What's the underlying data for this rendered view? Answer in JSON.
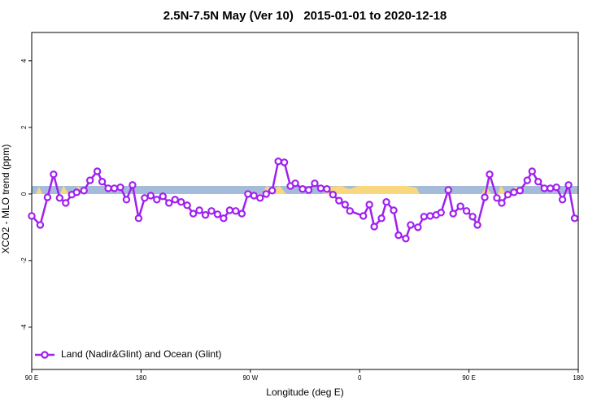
{
  "chart_data": {
    "type": "line",
    "title": "2.5N-7.5N May (Ver 10)   2015-01-01 to 2020-12-18",
    "xlabel": "Longitude (deg E)",
    "ylabel": "XCO2 - MLO trend (ppm)",
    "xlim": [
      90,
      540
    ],
    "ylim": [
      -5.27,
      4.85
    ],
    "xticks": [
      {
        "value": 90,
        "label": "90 E"
      },
      180,
      {
        "value": 270,
        "label": "90 W"
      },
      {
        "value": 360,
        "label": "0"
      },
      {
        "value": 450,
        "label": "90 E"
      },
      {
        "value": 540,
        "label": "180"
      }
    ],
    "yticks": [
      -4,
      -2,
      0,
      2,
      4
    ],
    "legend": "bottom-left",
    "series": [
      {
        "name": "Land (Nadir&Glint) and Ocean (Glint)",
        "color": "#a020f0",
        "x": [
          90,
          97,
          103,
          108,
          113,
          118,
          123,
          127,
          133,
          138,
          144,
          148,
          153,
          158,
          163,
          168,
          173,
          178,
          183,
          188,
          193,
          198,
          203,
          208,
          213,
          218,
          223,
          228,
          233,
          238,
          243,
          248,
          253,
          258,
          263,
          268,
          273,
          278,
          283,
          288,
          293,
          298,
          303,
          307,
          313,
          318,
          323,
          328,
          333,
          338,
          343,
          348,
          352,
          363,
          368,
          372,
          378,
          382,
          388,
          392,
          398,
          402,
          408,
          413,
          418,
          423,
          427,
          433,
          437,
          443,
          448,
          453,
          457,
          463,
          467,
          473,
          477,
          482,
          487,
          492,
          498,
          502,
          507,
          512,
          517,
          522,
          527,
          532,
          537
        ],
        "values": [
          -0.66,
          -0.93,
          -0.1,
          0.59,
          -0.12,
          -0.27,
          -0.02,
          0.05,
          0.1,
          0.41,
          0.68,
          0.37,
          0.17,
          0.17,
          0.2,
          -0.17,
          0.27,
          -0.73,
          -0.12,
          -0.05,
          -0.17,
          -0.07,
          -0.27,
          -0.17,
          -0.24,
          -0.34,
          -0.59,
          -0.49,
          -0.63,
          -0.51,
          -0.61,
          -0.73,
          -0.49,
          -0.51,
          -0.59,
          0,
          -0.05,
          -0.12,
          0,
          0.1,
          0.98,
          0.95,
          0.24,
          0.32,
          0.15,
          0.12,
          0.32,
          0.17,
          0.15,
          -0.02,
          -0.2,
          -0.32,
          -0.51,
          -0.66,
          -0.32,
          -0.98,
          -0.73,
          -0.24,
          -0.49,
          -1.24,
          -1.34,
          -0.93,
          -1.0,
          -0.68,
          -0.66,
          -0.63,
          -0.56,
          0.12,
          -0.59,
          -0.37,
          -0.51,
          -0.68,
          -0.93,
          -0.1,
          0.59,
          -0.12,
          -0.27,
          -0.02,
          0.05,
          0.1,
          0.41,
          0.68,
          0.37,
          0.17,
          0.17,
          0.2,
          -0.17,
          0.27,
          -0.73
        ]
      }
    ]
  }
}
